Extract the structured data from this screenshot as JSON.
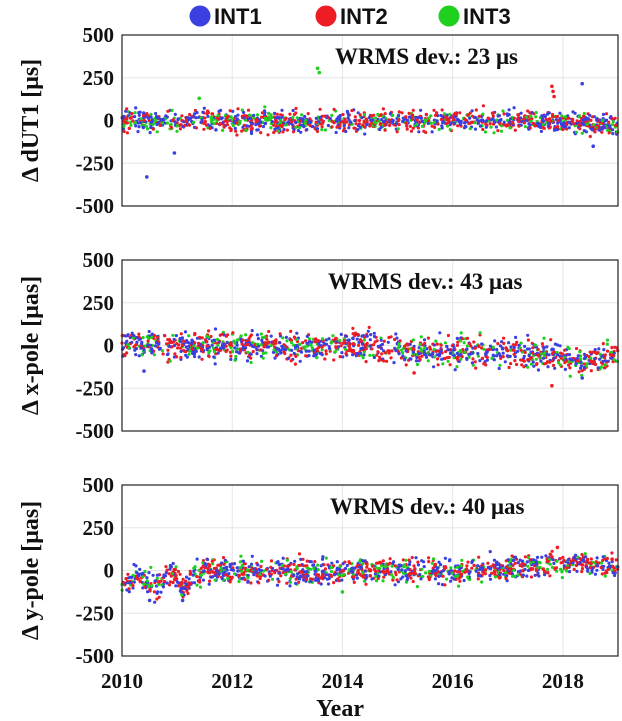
{
  "chart_data": {
    "legend": [
      {
        "name": "INT1",
        "color": "#3a3fe0"
      },
      {
        "name": "INT2",
        "color": "#ee1c25"
      },
      {
        "name": "INT3",
        "color": "#1fd01f"
      }
    ],
    "legend_position": "top-center",
    "xlabel": "Year",
    "xlim": [
      2010,
      2019
    ],
    "xticks": [
      "2010",
      "2012",
      "2014",
      "2016",
      "2018"
    ],
    "grid": true,
    "panels": [
      {
        "type": "scatter",
        "ylabel": "Δ dUT1 [μs]",
        "annotation": "WRMS dev.:  23 μs",
        "ylim": [
          -500,
          500
        ],
        "yticks": [
          "500",
          "250",
          "0",
          "-250",
          "-500"
        ],
        "trend": [
          [
            2010,
            0
          ],
          [
            2011,
            -5
          ],
          [
            2012,
            -5
          ],
          [
            2013,
            -10
          ],
          [
            2014,
            -10
          ],
          [
            2015,
            -5
          ],
          [
            2016,
            0
          ],
          [
            2017,
            5
          ],
          [
            2017.8,
            0
          ],
          [
            2018.3,
            -10
          ],
          [
            2018.6,
            -20
          ],
          [
            2019,
            -40
          ]
        ],
        "spread": 30,
        "outliers": [
          {
            "series": "INT1",
            "x": 2010.45,
            "y": -330
          },
          {
            "series": "INT1",
            "x": 2010.95,
            "y": -190
          },
          {
            "series": "INT3",
            "x": 2011.4,
            "y": 130
          },
          {
            "series": "INT3",
            "x": 2013.55,
            "y": 305
          },
          {
            "series": "INT3",
            "x": 2013.58,
            "y": 280
          },
          {
            "series": "INT2",
            "x": 2017.8,
            "y": 200
          },
          {
            "series": "INT2",
            "x": 2017.82,
            "y": 170
          },
          {
            "series": "INT2",
            "x": 2017.84,
            "y": 140
          },
          {
            "series": "INT1",
            "x": 2018.35,
            "y": 215
          },
          {
            "series": "INT1",
            "x": 2018.55,
            "y": -150
          }
        ]
      },
      {
        "type": "scatter",
        "ylabel": "Δ x-pole [μas]",
        "annotation": "WRMS dev.:  43 μas",
        "ylim": [
          -500,
          500
        ],
        "yticks": [
          "500",
          "250",
          "0",
          "-250",
          "-500"
        ],
        "trend": [
          [
            2010,
            20
          ],
          [
            2011,
            -10
          ],
          [
            2012,
            0
          ],
          [
            2013,
            -5
          ],
          [
            2014,
            5
          ],
          [
            2015,
            -20
          ],
          [
            2016,
            -40
          ],
          [
            2017,
            -40
          ],
          [
            2017.8,
            -60
          ],
          [
            2018.3,
            -90
          ],
          [
            2019,
            -50
          ]
        ],
        "spread": 40,
        "outliers": [
          {
            "series": "INT1",
            "x": 2010.4,
            "y": -150
          },
          {
            "series": "INT2",
            "x": 2017.8,
            "y": -235
          },
          {
            "series": "INT2",
            "x": 2015.3,
            "y": -160
          },
          {
            "series": "INT1",
            "x": 2018.35,
            "y": -190
          }
        ]
      },
      {
        "type": "scatter",
        "ylabel": "Δ y-pole [μas]",
        "annotation": "WRMS dev.:  40 μas",
        "ylim": [
          -500,
          500
        ],
        "yticks": [
          "500",
          "250",
          "0",
          "-250",
          "-500"
        ],
        "trend": [
          [
            2010,
            -80
          ],
          [
            2010.3,
            -40
          ],
          [
            2010.6,
            -100
          ],
          [
            2010.9,
            0
          ],
          [
            2011.1,
            -120
          ],
          [
            2011.4,
            0
          ],
          [
            2012,
            0
          ],
          [
            2013,
            -10
          ],
          [
            2014,
            0
          ],
          [
            2015,
            5
          ],
          [
            2016,
            -10
          ],
          [
            2017,
            10
          ],
          [
            2017.8,
            40
          ],
          [
            2018.3,
            40
          ],
          [
            2019,
            20
          ]
        ],
        "spread": 35,
        "outliers": [
          {
            "series": "INT1",
            "x": 2010.5,
            "y": -175
          },
          {
            "series": "INT1",
            "x": 2011.1,
            "y": -175
          },
          {
            "series": "INT2",
            "x": 2017.9,
            "y": 135
          },
          {
            "series": "INT3",
            "x": 2014.0,
            "y": -125
          }
        ]
      }
    ]
  }
}
